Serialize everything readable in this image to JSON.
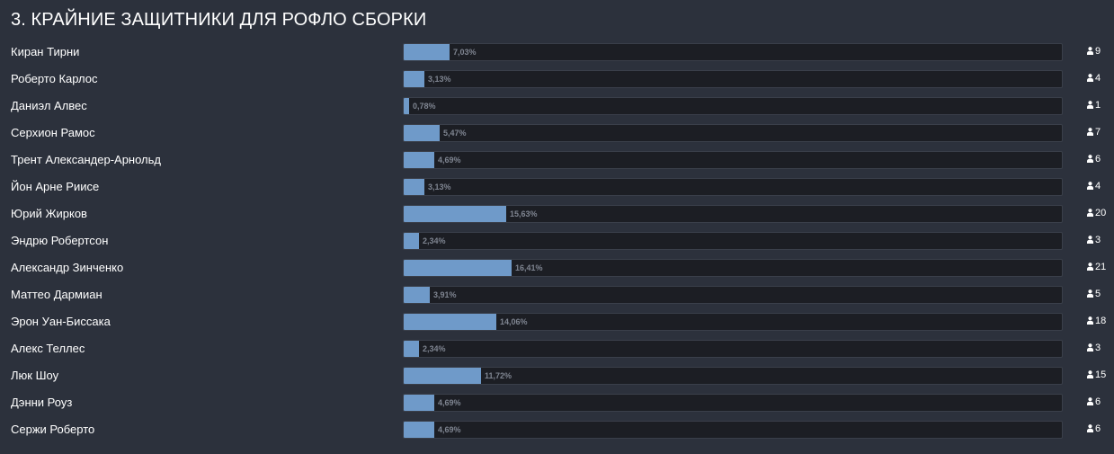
{
  "title": "3. КРАЙНИЕ ЗАЩИТНИКИ ДЛЯ РОФЛО СБОРКИ",
  "colors": {
    "background": "#2c313c",
    "bar_fill": "#6f9ac9",
    "bar_track": "#1c1e24",
    "percent_text": "#7f8591"
  },
  "count_icon": "user-icon",
  "chart_data": {
    "type": "bar",
    "orientation": "horizontal",
    "categories": [
      "Киран Тирни",
      "Роберто Карлос",
      "Даниэл Алвес",
      "Серхион Рамос",
      "Трент Александер-Арнольд",
      "Йон Арне Риисе",
      "Юрий Жирков",
      "Эндрю Робертсон",
      "Александр Зинченко",
      "Маттео Дармиан",
      "Эрон Уан-Биссака",
      "Алекс Теллес",
      "Люк Шоу",
      "Дэнни Роуз",
      "Сержи Роберто"
    ],
    "values": [
      7.03,
      3.13,
      0.78,
      5.47,
      4.69,
      3.13,
      15.63,
      2.34,
      16.41,
      3.91,
      14.06,
      2.34,
      11.72,
      4.69,
      4.69
    ],
    "value_labels": [
      "7,03%",
      "3,13%",
      "0,78%",
      "5,47%",
      "4,69%",
      "3,13%",
      "15,63%",
      "2,34%",
      "16,41%",
      "3,91%",
      "14,06%",
      "2,34%",
      "11,72%",
      "4,69%",
      "4,69%"
    ],
    "counts": [
      "9",
      "4",
      "1",
      "7",
      "6",
      "4",
      "20",
      "3",
      "21",
      "5",
      "18",
      "3",
      "15",
      "6",
      "6"
    ],
    "xlim": [
      0,
      100
    ]
  }
}
